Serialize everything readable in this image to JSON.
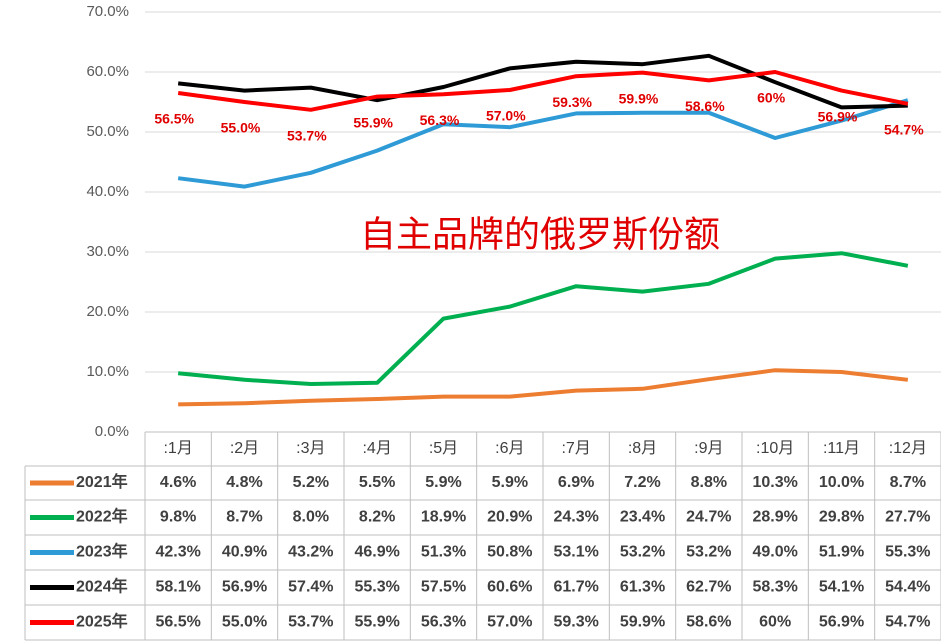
{
  "chart_data": {
    "type": "line",
    "annotation": "自主品牌的俄罗斯份额",
    "categories": [
      ":1月",
      ":2月",
      ":3月",
      ":4月",
      ":5月",
      ":6月",
      ":7月",
      ":8月",
      ":9月",
      ":10月",
      ":11月",
      ":12月"
    ],
    "ylim": [
      0,
      70
    ],
    "yticks": [
      {
        "value": 0,
        "label": "0.0%"
      },
      {
        "value": 10,
        "label": "10.0%"
      },
      {
        "value": 20,
        "label": "20.0%"
      },
      {
        "value": 30,
        "label": "30.0%"
      },
      {
        "value": 40,
        "label": "40.0%"
      },
      {
        "value": 50,
        "label": "50.0%"
      },
      {
        "value": 60,
        "label": "60.0%"
      },
      {
        "value": 70,
        "label": "70.0%"
      }
    ],
    "grid": true,
    "series": [
      {
        "name": "2021年",
        "color": "#ed7d31",
        "values": [
          4.6,
          4.8,
          5.2,
          5.5,
          5.9,
          5.9,
          6.9,
          7.2,
          8.8,
          10.3,
          10.0,
          8.7
        ],
        "value_labels": [
          "4.6%",
          "4.8%",
          "5.2%",
          "5.5%",
          "5.9%",
          "5.9%",
          "6.9%",
          "7.2%",
          "8.8%",
          "10.3%",
          "10.0%",
          "8.7%"
        ]
      },
      {
        "name": "2022年",
        "color": "#00b050",
        "values": [
          9.8,
          8.7,
          8.0,
          8.2,
          18.9,
          20.9,
          24.3,
          23.4,
          24.7,
          28.9,
          29.8,
          27.7
        ],
        "value_labels": [
          "9.8%",
          "8.7%",
          "8.0%",
          "8.2%",
          "18.9%",
          "20.9%",
          "24.3%",
          "23.4%",
          "24.7%",
          "28.9%",
          "29.8%",
          "27.7%"
        ]
      },
      {
        "name": "2023年",
        "color": "#2e9bd6",
        "values": [
          42.3,
          40.9,
          43.2,
          46.9,
          51.3,
          50.8,
          53.1,
          53.2,
          53.2,
          49.0,
          51.9,
          55.3
        ],
        "value_labels": [
          "42.3%",
          "40.9%",
          "43.2%",
          "46.9%",
          "51.3%",
          "50.8%",
          "53.1%",
          "53.2%",
          "53.2%",
          "49.0%",
          "51.9%",
          "55.3%"
        ]
      },
      {
        "name": "2024年",
        "color": "#000000",
        "values": [
          58.1,
          56.9,
          57.4,
          55.3,
          57.5,
          60.6,
          61.7,
          61.3,
          62.7,
          58.3,
          54.1,
          54.4
        ],
        "value_labels": [
          "58.1%",
          "56.9%",
          "57.4%",
          "55.3%",
          "57.5%",
          "60.6%",
          "61.7%",
          "61.3%",
          "62.7%",
          "58.3%",
          "54.1%",
          "54.4%"
        ]
      },
      {
        "name": "2025年",
        "color": "#ff0000",
        "values": [
          56.5,
          55.0,
          53.7,
          55.9,
          56.3,
          57.0,
          59.3,
          59.9,
          58.6,
          60,
          56.9,
          54.7
        ],
        "value_labels": [
          "56.5%",
          "55.0%",
          "53.7%",
          "55.9%",
          "56.3%",
          "57.0%",
          "59.3%",
          "59.9%",
          "58.6%",
          "60%",
          "56.9%",
          "54.7%"
        ],
        "data_labels": true
      }
    ]
  }
}
